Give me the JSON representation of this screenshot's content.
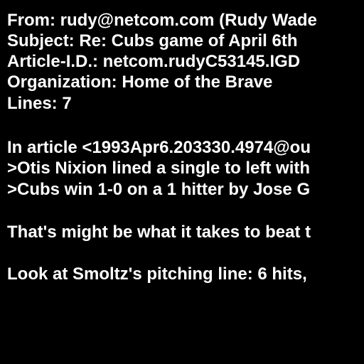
{
  "header": [
    "From: rudy@netcom.com (Rudy Wade",
    "Subject: Re: Cubs game of April 6th",
    "Article-I.D.: netcom.rudyC53145.IGD",
    "Organization: Home of the Brave",
    "Lines: 7"
  ],
  "body": {
    "intro": "In article <1993Apr6.203330.4974@ou",
    "quotes": [
      ">Otis Nixion lined a single to left with",
      ">Cubs win 1-0 on a 1 hitter by Jose G"
    ],
    "paragraphs": [
      "That's might be what it takes to beat t",
      "Look at Smoltz's pitching line: 6 hits,"
    ]
  }
}
